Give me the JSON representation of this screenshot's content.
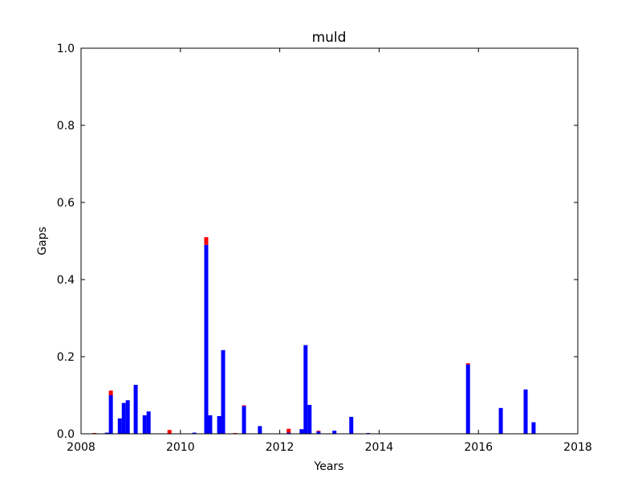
{
  "chart_data": {
    "type": "bar",
    "title": "muld",
    "x_label": "Years",
    "y_label": "Gaps",
    "x": [
      2008.27,
      2008.52,
      2008.6,
      2008.78,
      2008.86,
      2008.94,
      2009.1,
      2009.28,
      2009.36,
      2009.78,
      2010.28,
      2010.52,
      2010.6,
      2010.78,
      2010.86,
      2011.1,
      2011.28,
      2011.6,
      2012.18,
      2012.44,
      2012.52,
      2012.6,
      2012.78,
      2013.1,
      2013.44,
      2013.78,
      2015.79,
      2016.45,
      2016.95,
      2017.11
    ],
    "series": [
      {
        "color": "#0000ff",
        "values": [
          0,
          0.003,
          0.1,
          0.04,
          0.08,
          0.087,
          0.127,
          0.048,
          0.058,
          0,
          0.003,
          0.49,
          0.048,
          0.046,
          0.217,
          0,
          0.072,
          0.02,
          0.003,
          0.012,
          0.23,
          0.075,
          0.006,
          0.008,
          0.044,
          0.002,
          0.18,
          0.067,
          0.115,
          0.03
        ]
      },
      {
        "color": "#ff0000",
        "values": [
          0.002,
          0,
          0.012,
          0,
          0,
          0,
          0,
          0,
          0,
          0.01,
          0,
          0.02,
          0,
          0,
          0,
          0.002,
          0.002,
          0,
          0.01,
          0,
          0,
          0,
          0.002,
          0,
          0,
          0,
          0.003,
          0,
          0,
          0
        ]
      }
    ],
    "stacked": true,
    "xlim": [
      2008,
      2018
    ],
    "xticks": [
      2008,
      2010,
      2012,
      2014,
      2016,
      2018
    ],
    "ylim": [
      0,
      1
    ],
    "yticks": [
      {
        "value": 0,
        "label": "0.0"
      },
      0.2,
      0.4,
      0.6,
      0.8,
      {
        "value": 1,
        "label": "1.0"
      }
    ],
    "grid": false
  }
}
